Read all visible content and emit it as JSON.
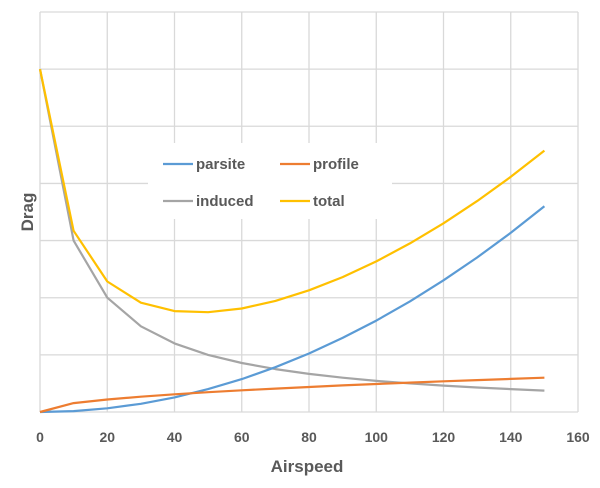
{
  "chart_data": {
    "type": "line",
    "title": "",
    "xlabel": "Airspeed",
    "ylabel": "Drag",
    "x": [
      0,
      10,
      20,
      30,
      40,
      50,
      60,
      70,
      80,
      90,
      100,
      110,
      120,
      130,
      140,
      150
    ],
    "xlim": [
      0,
      160
    ],
    "xticks": [
      0,
      20,
      40,
      60,
      80,
      100,
      120,
      140,
      160
    ],
    "ylim": [
      0,
      7
    ],
    "yticks_labeled": false,
    "grid": true,
    "legend_position": "inside-upper-center",
    "series": [
      {
        "name": "parsite",
        "color": "#5B9BD5",
        "values": [
          0,
          0.016,
          0.064,
          0.144,
          0.256,
          0.4,
          0.576,
          0.784,
          1.024,
          1.296,
          1.6,
          1.936,
          2.304,
          2.704,
          3.136,
          3.6
        ]
      },
      {
        "name": "profile",
        "color": "#ED7D31",
        "values": [
          0,
          0.155,
          0.219,
          0.268,
          0.31,
          0.346,
          0.379,
          0.41,
          0.438,
          0.465,
          0.49,
          0.514,
          0.537,
          0.558,
          0.58,
          0.6
        ]
      },
      {
        "name": "induced",
        "color": "#A5A5A5",
        "values": [
          6,
          3.0,
          2.0,
          1.5,
          1.2,
          1.0,
          0.857,
          0.75,
          0.667,
          0.6,
          0.545,
          0.5,
          0.462,
          0.429,
          0.4,
          0.375
        ]
      },
      {
        "name": "total",
        "color": "#FFC000",
        "values": [
          6,
          3.171,
          2.283,
          1.912,
          1.766,
          1.746,
          1.812,
          1.944,
          2.129,
          2.361,
          2.635,
          2.95,
          3.303,
          3.691,
          4.116,
          4.575
        ]
      }
    ]
  },
  "legend": {
    "items": [
      {
        "label": "parsite",
        "color": "#5B9BD5"
      },
      {
        "label": "profile",
        "color": "#ED7D31"
      },
      {
        "label": "induced",
        "color": "#A5A5A5"
      },
      {
        "label": "total",
        "color": "#FFC000"
      }
    ]
  },
  "axes": {
    "x_title": "Airspeed",
    "y_title": "Drag",
    "x_tick_labels": [
      "0",
      "20",
      "40",
      "60",
      "80",
      "100",
      "120",
      "140",
      "160"
    ]
  }
}
